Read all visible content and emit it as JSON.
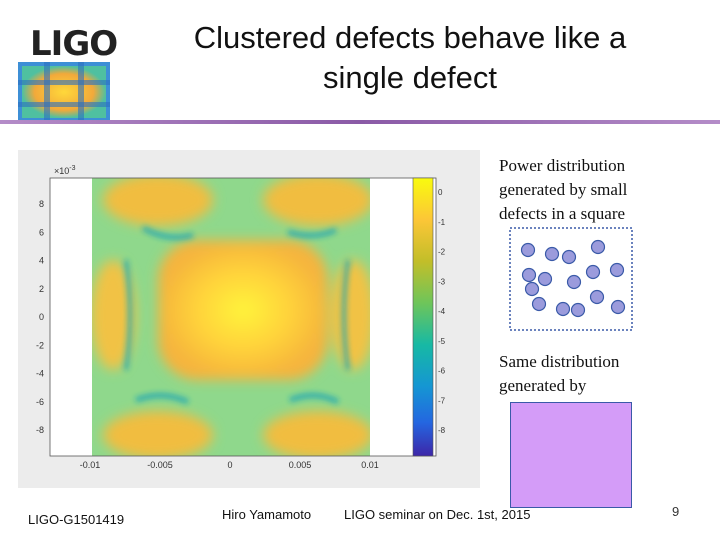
{
  "slide": {
    "logo": "LIGO",
    "title_line1": "Clustered defects behave like a",
    "title_line2": "single defect",
    "text1_line1": "Power distribution",
    "text1_line2": "generated by small",
    "text1_line3": "defects in a square",
    "text2_line1": "Same distribution",
    "text2_line2": "generated by",
    "footer_left": "LIGO-G1501419",
    "footer_author": "Hiro Yamamoto",
    "footer_event": "LIGO seminar on Dec. 1st, 2015",
    "page_number": "9"
  },
  "colors": {
    "accent_line": "#8a5aa6",
    "defect_fill": "#9b9bdc",
    "defect_stroke": "#3a5aa8",
    "square_fill": "#d49cf8",
    "square_stroke": "#3a5aa8"
  },
  "chart_data": {
    "type": "heatmap",
    "exponent_label": "×10",
    "exponent_power": "-3",
    "yticks": [
      "8",
      "6",
      "4",
      "2",
      "0",
      "-2",
      "-4",
      "-6",
      "-8"
    ],
    "xticks": [
      "-0.01",
      "-0.005",
      "0",
      "0.005",
      "0.01"
    ],
    "colorbar_ticks": [
      "0",
      "-1",
      "-2",
      "-3",
      "-4",
      "-5",
      "-6",
      "-7",
      "-8"
    ],
    "colormap": "parula"
  }
}
